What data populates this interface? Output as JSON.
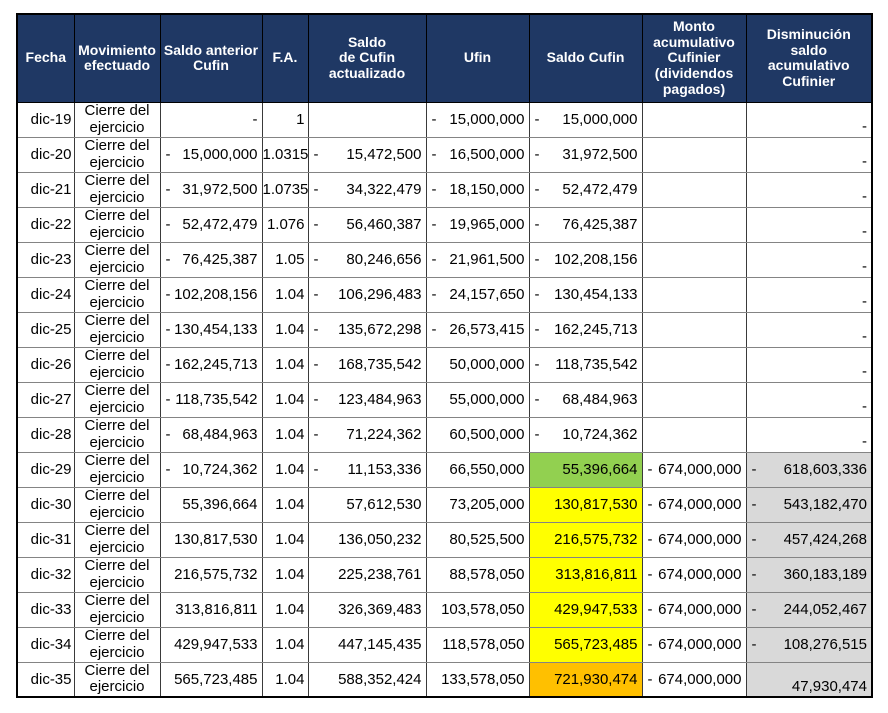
{
  "colors": {
    "header_bg": "#1F3864",
    "header_text": "#FFFFFF",
    "highlight_green": "#92D050",
    "highlight_yellow": "#FFFF00",
    "highlight_orange": "#FFC000",
    "shaded_gray": "#D9D9D9"
  },
  "table": {
    "columns": [
      "Fecha",
      "Movimiento\nefectuado",
      "Saldo anterior\nCufin",
      "F.A.",
      "Saldo\nde Cufin\nactualizado",
      "Ufin",
      "Saldo Cufin",
      "Monto\nacumulativo\nCufinier\n(dividendos\npagados)",
      "Disminución\nsaldo\nacumulativo\nCufinier"
    ],
    "rows": [
      {
        "fecha": "dic-19",
        "movimiento": "Cierre del ejercicio",
        "sa": {
          "m": "",
          "v": "-"
        },
        "fa": "1",
        "act": {
          "m": "",
          "v": ""
        },
        "ufin": {
          "m": "-",
          "v": "15,000,000"
        },
        "sc": {
          "m": "-",
          "v": "15,000,000",
          "bg": ""
        },
        "monto": {
          "m": "",
          "v": ""
        },
        "dism": {
          "m": "",
          "v": "-",
          "bg": "",
          "va": "bottom"
        }
      },
      {
        "fecha": "dic-20",
        "movimiento": "Cierre del ejercicio",
        "sa": {
          "m": "-",
          "v": "15,000,000"
        },
        "fa": "1.0315",
        "act": {
          "m": "-",
          "v": "15,472,500"
        },
        "ufin": {
          "m": "-",
          "v": "16,500,000"
        },
        "sc": {
          "m": "-",
          "v": "31,972,500",
          "bg": ""
        },
        "monto": {
          "m": "",
          "v": ""
        },
        "dism": {
          "m": "",
          "v": "-",
          "bg": "",
          "va": "bottom"
        }
      },
      {
        "fecha": "dic-21",
        "movimiento": "Cierre del ejercicio",
        "sa": {
          "m": "-",
          "v": "31,972,500"
        },
        "fa": "1.0735",
        "act": {
          "m": "-",
          "v": "34,322,479"
        },
        "ufin": {
          "m": "-",
          "v": "18,150,000"
        },
        "sc": {
          "m": "-",
          "v": "52,472,479",
          "bg": ""
        },
        "monto": {
          "m": "",
          "v": ""
        },
        "dism": {
          "m": "",
          "v": "-",
          "bg": "",
          "va": "bottom"
        }
      },
      {
        "fecha": "dic-22",
        "movimiento": "Cierre del ejercicio",
        "sa": {
          "m": "-",
          "v": "52,472,479"
        },
        "fa": "1.076",
        "act": {
          "m": "-",
          "v": "56,460,387"
        },
        "ufin": {
          "m": "-",
          "v": "19,965,000"
        },
        "sc": {
          "m": "-",
          "v": "76,425,387",
          "bg": ""
        },
        "monto": {
          "m": "",
          "v": ""
        },
        "dism": {
          "m": "",
          "v": "-",
          "bg": "",
          "va": "bottom"
        }
      },
      {
        "fecha": "dic-23",
        "movimiento": "Cierre del ejercicio",
        "sa": {
          "m": "-",
          "v": "76,425,387"
        },
        "fa": "1.05",
        "act": {
          "m": "-",
          "v": "80,246,656"
        },
        "ufin": {
          "m": "-",
          "v": "21,961,500"
        },
        "sc": {
          "m": "-",
          "v": "102,208,156",
          "bg": ""
        },
        "monto": {
          "m": "",
          "v": ""
        },
        "dism": {
          "m": "",
          "v": "-",
          "bg": "",
          "va": "bottom"
        }
      },
      {
        "fecha": "dic-24",
        "movimiento": "Cierre del ejercicio",
        "sa": {
          "m": "-",
          "v": "102,208,156"
        },
        "fa": "1.04",
        "act": {
          "m": "-",
          "v": "106,296,483"
        },
        "ufin": {
          "m": "-",
          "v": "24,157,650"
        },
        "sc": {
          "m": "-",
          "v": "130,454,133",
          "bg": ""
        },
        "monto": {
          "m": "",
          "v": ""
        },
        "dism": {
          "m": "",
          "v": "-",
          "bg": "",
          "va": "bottom"
        }
      },
      {
        "fecha": "dic-25",
        "movimiento": "Cierre del ejercicio",
        "sa": {
          "m": "-",
          "v": "130,454,133"
        },
        "fa": "1.04",
        "act": {
          "m": "-",
          "v": "135,672,298"
        },
        "ufin": {
          "m": "-",
          "v": "26,573,415"
        },
        "sc": {
          "m": "-",
          "v": "162,245,713",
          "bg": ""
        },
        "monto": {
          "m": "",
          "v": ""
        },
        "dism": {
          "m": "",
          "v": "-",
          "bg": "",
          "va": "bottom"
        }
      },
      {
        "fecha": "dic-26",
        "movimiento": "Cierre del ejercicio",
        "sa": {
          "m": "-",
          "v": "162,245,713"
        },
        "fa": "1.04",
        "act": {
          "m": "-",
          "v": "168,735,542"
        },
        "ufin": {
          "m": "",
          "v": "50,000,000"
        },
        "sc": {
          "m": "-",
          "v": "118,735,542",
          "bg": ""
        },
        "monto": {
          "m": "",
          "v": ""
        },
        "dism": {
          "m": "",
          "v": "-",
          "bg": "",
          "va": "bottom"
        }
      },
      {
        "fecha": "dic-27",
        "movimiento": "Cierre del ejercicio",
        "sa": {
          "m": "-",
          "v": "118,735,542"
        },
        "fa": "1.04",
        "act": {
          "m": "-",
          "v": "123,484,963"
        },
        "ufin": {
          "m": "",
          "v": "55,000,000"
        },
        "sc": {
          "m": "-",
          "v": "68,484,963",
          "bg": ""
        },
        "monto": {
          "m": "",
          "v": ""
        },
        "dism": {
          "m": "",
          "v": "-",
          "bg": "",
          "va": "bottom"
        }
      },
      {
        "fecha": "dic-28",
        "movimiento": "Cierre del ejercicio",
        "sa": {
          "m": "-",
          "v": "68,484,963"
        },
        "fa": "1.04",
        "act": {
          "m": "-",
          "v": "71,224,362"
        },
        "ufin": {
          "m": "",
          "v": "60,500,000"
        },
        "sc": {
          "m": "-",
          "v": "10,724,362",
          "bg": ""
        },
        "monto": {
          "m": "",
          "v": ""
        },
        "dism": {
          "m": "",
          "v": "-",
          "bg": "",
          "va": "bottom"
        }
      },
      {
        "fecha": "dic-29",
        "movimiento": "Cierre del ejercicio",
        "sa": {
          "m": "-",
          "v": "10,724,362"
        },
        "fa": "1.04",
        "act": {
          "m": "-",
          "v": "11,153,336"
        },
        "ufin": {
          "m": "",
          "v": "66,550,000"
        },
        "sc": {
          "m": "",
          "v": "55,396,664",
          "bg": "green"
        },
        "monto": {
          "m": "-",
          "v": "674,000,000"
        },
        "dism": {
          "m": "-",
          "v": "618,603,336",
          "bg": "gray"
        }
      },
      {
        "fecha": "dic-30",
        "movimiento": "Cierre del ejercicio",
        "sa": {
          "m": "",
          "v": "55,396,664"
        },
        "fa": "1.04",
        "act": {
          "m": "",
          "v": "57,612,530"
        },
        "ufin": {
          "m": "",
          "v": "73,205,000"
        },
        "sc": {
          "m": "",
          "v": "130,817,530",
          "bg": "yellow"
        },
        "monto": {
          "m": "-",
          "v": "674,000,000"
        },
        "dism": {
          "m": "-",
          "v": "543,182,470",
          "bg": "gray"
        }
      },
      {
        "fecha": "dic-31",
        "movimiento": "Cierre del ejercicio",
        "sa": {
          "m": "",
          "v": "130,817,530"
        },
        "fa": "1.04",
        "act": {
          "m": "",
          "v": "136,050,232"
        },
        "ufin": {
          "m": "",
          "v": "80,525,500"
        },
        "sc": {
          "m": "",
          "v": "216,575,732",
          "bg": "yellow"
        },
        "monto": {
          "m": "-",
          "v": "674,000,000"
        },
        "dism": {
          "m": "-",
          "v": "457,424,268",
          "bg": "gray"
        }
      },
      {
        "fecha": "dic-32",
        "movimiento": "Cierre del ejercicio",
        "sa": {
          "m": "",
          "v": "216,575,732"
        },
        "fa": "1.04",
        "act": {
          "m": "",
          "v": "225,238,761"
        },
        "ufin": {
          "m": "",
          "v": "88,578,050"
        },
        "sc": {
          "m": "",
          "v": "313,816,811",
          "bg": "yellow"
        },
        "monto": {
          "m": "-",
          "v": "674,000,000"
        },
        "dism": {
          "m": "-",
          "v": "360,183,189",
          "bg": "gray"
        }
      },
      {
        "fecha": "dic-33",
        "movimiento": "Cierre del ejercicio",
        "sa": {
          "m": "",
          "v": "313,816,811"
        },
        "fa": "1.04",
        "act": {
          "m": "",
          "v": "326,369,483"
        },
        "ufin": {
          "m": "",
          "v": "103,578,050"
        },
        "sc": {
          "m": "",
          "v": "429,947,533",
          "bg": "yellow"
        },
        "monto": {
          "m": "-",
          "v": "674,000,000"
        },
        "dism": {
          "m": "-",
          "v": "244,052,467",
          "bg": "gray"
        }
      },
      {
        "fecha": "dic-34",
        "movimiento": "Cierre del ejercicio",
        "sa": {
          "m": "",
          "v": "429,947,533"
        },
        "fa": "1.04",
        "act": {
          "m": "",
          "v": "447,145,435"
        },
        "ufin": {
          "m": "",
          "v": "118,578,050"
        },
        "sc": {
          "m": "",
          "v": "565,723,485",
          "bg": "yellow"
        },
        "monto": {
          "m": "-",
          "v": "674,000,000"
        },
        "dism": {
          "m": "-",
          "v": "108,276,515",
          "bg": "gray"
        }
      },
      {
        "fecha": "dic-35",
        "movimiento": "Cierre del ejercicio",
        "sa": {
          "m": "",
          "v": "565,723,485"
        },
        "fa": "1.04",
        "act": {
          "m": "",
          "v": "588,352,424"
        },
        "ufin": {
          "m": "",
          "v": "133,578,050"
        },
        "sc": {
          "m": "",
          "v": "721,930,474",
          "bg": "orange"
        },
        "monto": {
          "m": "-",
          "v": "674,000,000"
        },
        "dism": {
          "m": "",
          "v": "47,930,474",
          "bg": "gray",
          "va": "bottom"
        }
      }
    ]
  }
}
